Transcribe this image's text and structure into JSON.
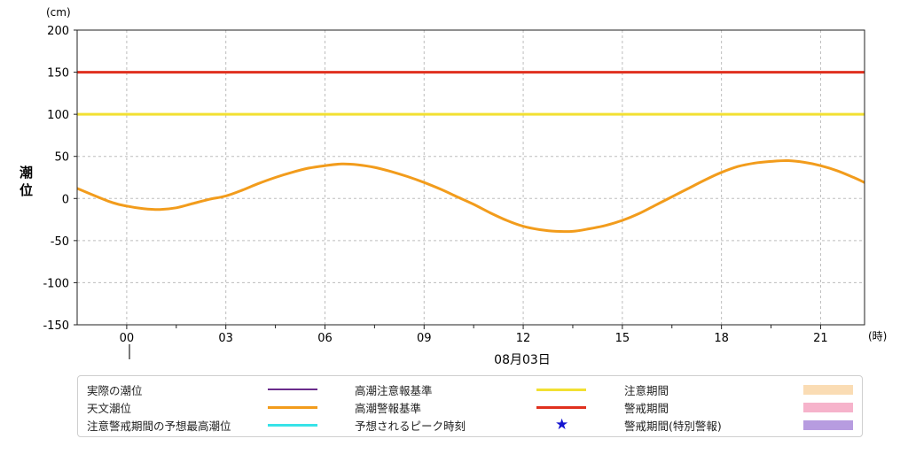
{
  "chart_data": {
    "type": "line",
    "ylabel": "潮位",
    "y_unit": "(cm)",
    "x_unit": "(時)",
    "date_label": "08月03日",
    "ylim": [
      -150,
      200
    ],
    "y_ticks": [
      200,
      150,
      100,
      50,
      0,
      -50,
      -100,
      -150
    ],
    "xlim_hours": [
      -1.5,
      22.33
    ],
    "x_ticks": [
      {
        "hour": 0,
        "label": "00"
      },
      {
        "hour": 3,
        "label": "03"
      },
      {
        "hour": 6,
        "label": "06"
      },
      {
        "hour": 9,
        "label": "09"
      },
      {
        "hour": 12,
        "label": "12"
      },
      {
        "hour": 15,
        "label": "15"
      },
      {
        "hour": 18,
        "label": "18"
      },
      {
        "hour": 21,
        "label": "21"
      }
    ],
    "grid": true,
    "thresholds": [
      {
        "name": "高潮警報基準",
        "value": 150,
        "color": "#e0301e"
      },
      {
        "name": "高潮注意報基準",
        "value": 100,
        "color": "#f2e032"
      }
    ],
    "series": [
      {
        "name": "天文潮位",
        "color": "#f29c1c",
        "x": [
          -1.5,
          -0.5,
          0,
          0.5,
          1,
          1.5,
          2,
          2.5,
          3,
          3.5,
          4,
          4.5,
          5,
          5.5,
          6,
          6.5,
          7,
          7.5,
          8,
          8.5,
          9,
          9.5,
          10,
          10.5,
          11,
          11.5,
          12,
          12.5,
          13,
          13.5,
          14,
          14.5,
          15,
          15.5,
          16,
          16.5,
          17,
          17.5,
          18,
          18.5,
          19,
          19.5,
          20,
          20.5,
          21,
          21.5,
          22,
          22.33
        ],
        "values": [
          12,
          -4,
          -9,
          -12,
          -13,
          -11,
          -6,
          -1,
          3,
          10,
          18,
          25,
          31,
          36,
          39,
          41,
          40,
          37,
          32,
          26,
          19,
          11,
          2,
          -7,
          -17,
          -26,
          -33,
          -37,
          -39,
          -39,
          -36,
          -32,
          -26,
          -18,
          -8,
          2,
          12,
          22,
          31,
          38,
          42,
          44,
          45,
          43,
          39,
          33,
          25,
          19
        ]
      }
    ]
  },
  "legend": {
    "items": [
      {
        "label": "実際の潮位",
        "color": "#6a2c8c",
        "kind": "thin-line"
      },
      {
        "label": "天文潮位",
        "color": "#f29c1c",
        "kind": "line"
      },
      {
        "label": "注意警戒期間の予想最高潮位",
        "color": "#38e3e8",
        "kind": "line"
      },
      {
        "label": "高潮注意報基準",
        "color": "#f2e032",
        "kind": "line"
      },
      {
        "label": "高潮警報基準",
        "color": "#e0301e",
        "kind": "line"
      },
      {
        "label": "予想されるピーク時刻",
        "color": "#1515d0",
        "kind": "star",
        "glyph": "★"
      },
      {
        "label": "注意期間",
        "color": "#fadcb4",
        "kind": "box"
      },
      {
        "label": "警戒期間",
        "color": "#f6b3cb",
        "kind": "box"
      },
      {
        "label": "警戒期間(特別警報)",
        "color": "#b79ce0",
        "kind": "box"
      }
    ]
  }
}
